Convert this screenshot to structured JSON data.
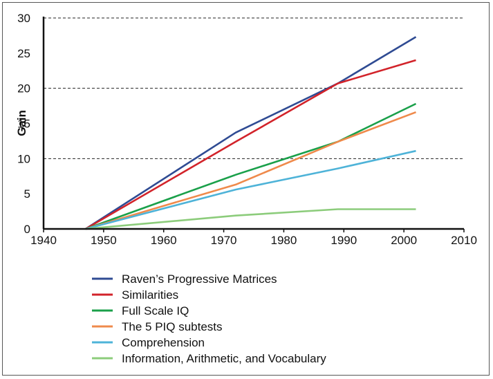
{
  "chart_data": {
    "type": "line",
    "title": "",
    "xlabel": "",
    "ylabel": "Gain",
    "xlim": [
      1940,
      2010
    ],
    "ylim": [
      0,
      30
    ],
    "x_ticks": [
      1940,
      1950,
      1960,
      1970,
      1980,
      1990,
      2000,
      2010
    ],
    "y_ticks": [
      0,
      5,
      10,
      15,
      20,
      25,
      30
    ],
    "gridlines_y": [
      10,
      20,
      30
    ],
    "legend_position": "bottom",
    "series": [
      {
        "name": "Raven’s Progressive Matrices",
        "color": "#2f4b93",
        "points": [
          [
            1947,
            0
          ],
          [
            1972,
            13.7
          ],
          [
            1989,
            20.7
          ],
          [
            2002,
            27.3
          ]
        ]
      },
      {
        "name": "Similarities",
        "color": "#d2232a",
        "points": [
          [
            1947,
            0
          ],
          [
            1972,
            12.4
          ],
          [
            1989,
            20.7
          ],
          [
            2002,
            24.0
          ]
        ]
      },
      {
        "name": "Full Scale IQ",
        "color": "#1aa04a",
        "points": [
          [
            1947,
            0
          ],
          [
            1972,
            7.7
          ],
          [
            1989,
            12.4
          ],
          [
            2002,
            17.8
          ]
        ]
      },
      {
        "name": "The 5 PIQ subtests",
        "color": "#ef8a4b",
        "points": [
          [
            1947,
            0
          ],
          [
            1972,
            6.3
          ],
          [
            1989,
            12.4
          ],
          [
            2002,
            16.6
          ]
        ]
      },
      {
        "name": "Comprehension",
        "color": "#4eb3d8",
        "points": [
          [
            1947,
            0
          ],
          [
            1972,
            5.6
          ],
          [
            1989,
            8.6
          ],
          [
            2002,
            11.1
          ]
        ]
      },
      {
        "name": "Information, Arithmetic, and Vocabulary",
        "color": "#8ccc7b",
        "points": [
          [
            1947,
            0
          ],
          [
            1972,
            1.9
          ],
          [
            1989,
            2.8
          ],
          [
            2002,
            2.8
          ]
        ]
      }
    ]
  }
}
